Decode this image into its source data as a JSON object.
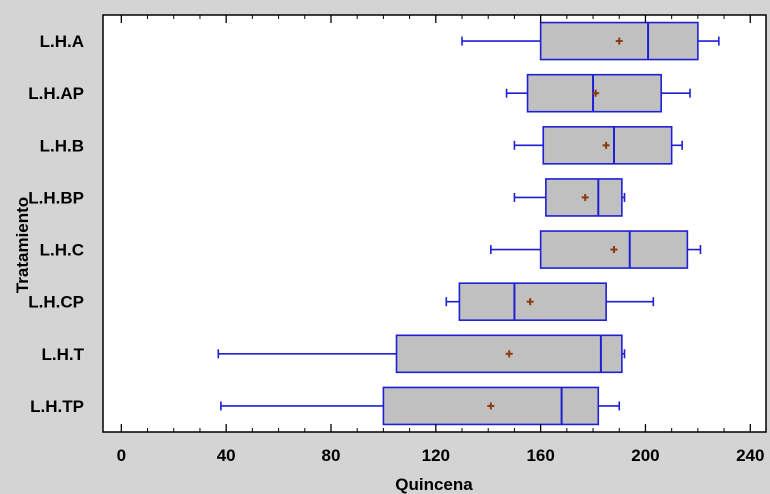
{
  "chart_data": {
    "type": "boxplot",
    "orientation": "horizontal",
    "xlabel": "Quincena",
    "ylabel": "Tratamiento",
    "xlim": [
      -7,
      246
    ],
    "xticks": [
      0,
      40,
      80,
      120,
      160,
      200,
      240
    ],
    "grid": false,
    "colors": {
      "box_fill": "#c0c0c0",
      "box_stroke": "#1f1fd6",
      "mean_marker": "#8b3a10",
      "background": "#d4d4d4",
      "plot_bg": "#ffffff"
    },
    "categories": [
      "L.H.A",
      "L.H.AP",
      "L.H.B",
      "L.H.BP",
      "L.H.C",
      "L.H.CP",
      "L.H.T",
      "L.H.TP"
    ],
    "series": [
      {
        "category": "L.H.A",
        "min": 130,
        "q1": 160,
        "median": 201,
        "q3": 220,
        "max": 228,
        "mean": 190
      },
      {
        "category": "L.H.AP",
        "min": 147,
        "q1": 155,
        "median": 180,
        "q3": 206,
        "max": 217,
        "mean": 181
      },
      {
        "category": "L.H.B",
        "min": 150,
        "q1": 161,
        "median": 188,
        "q3": 210,
        "max": 214,
        "mean": 185
      },
      {
        "category": "L.H.BP",
        "min": 150,
        "q1": 162,
        "median": 182,
        "q3": 191,
        "max": 192,
        "mean": 177
      },
      {
        "category": "L.H.C",
        "min": 141,
        "q1": 160,
        "median": 194,
        "q3": 216,
        "max": 221,
        "mean": 188
      },
      {
        "category": "L.H.CP",
        "min": 124,
        "q1": 129,
        "median": 150,
        "q3": 185,
        "max": 203,
        "mean": 156
      },
      {
        "category": "L.H.T",
        "min": 37,
        "q1": 105,
        "median": 183,
        "q3": 191,
        "max": 192,
        "mean": 148
      },
      {
        "category": "L.H.TP",
        "min": 38,
        "q1": 100,
        "median": 168,
        "q3": 182,
        "max": 190,
        "mean": 141
      }
    ]
  }
}
